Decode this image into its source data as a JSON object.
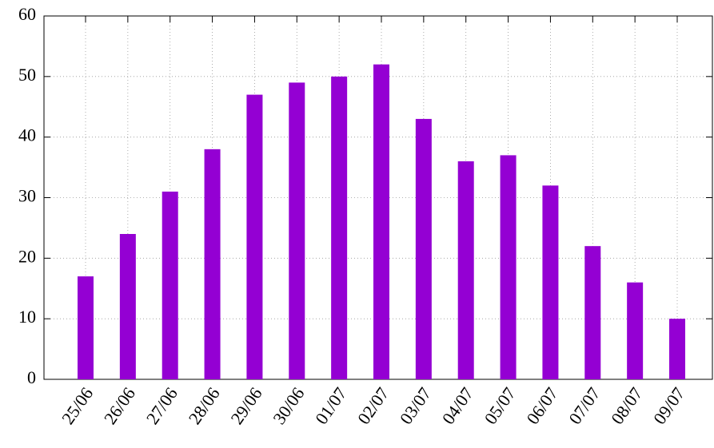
{
  "chart_data": {
    "type": "bar",
    "categories": [
      "25/06",
      "26/06",
      "27/06",
      "28/06",
      "29/06",
      "30/06",
      "01/07",
      "02/07",
      "03/07",
      "04/07",
      "05/07",
      "06/07",
      "07/07",
      "08/07",
      "09/07"
    ],
    "values": [
      17,
      24,
      31,
      38,
      47,
      49,
      50,
      52,
      43,
      36,
      37,
      32,
      22,
      16,
      10
    ],
    "color": "#9400d3",
    "ylim": [
      0,
      60
    ],
    "yticks": [
      0,
      10,
      20,
      30,
      40,
      50,
      60
    ],
    "grid": true
  }
}
